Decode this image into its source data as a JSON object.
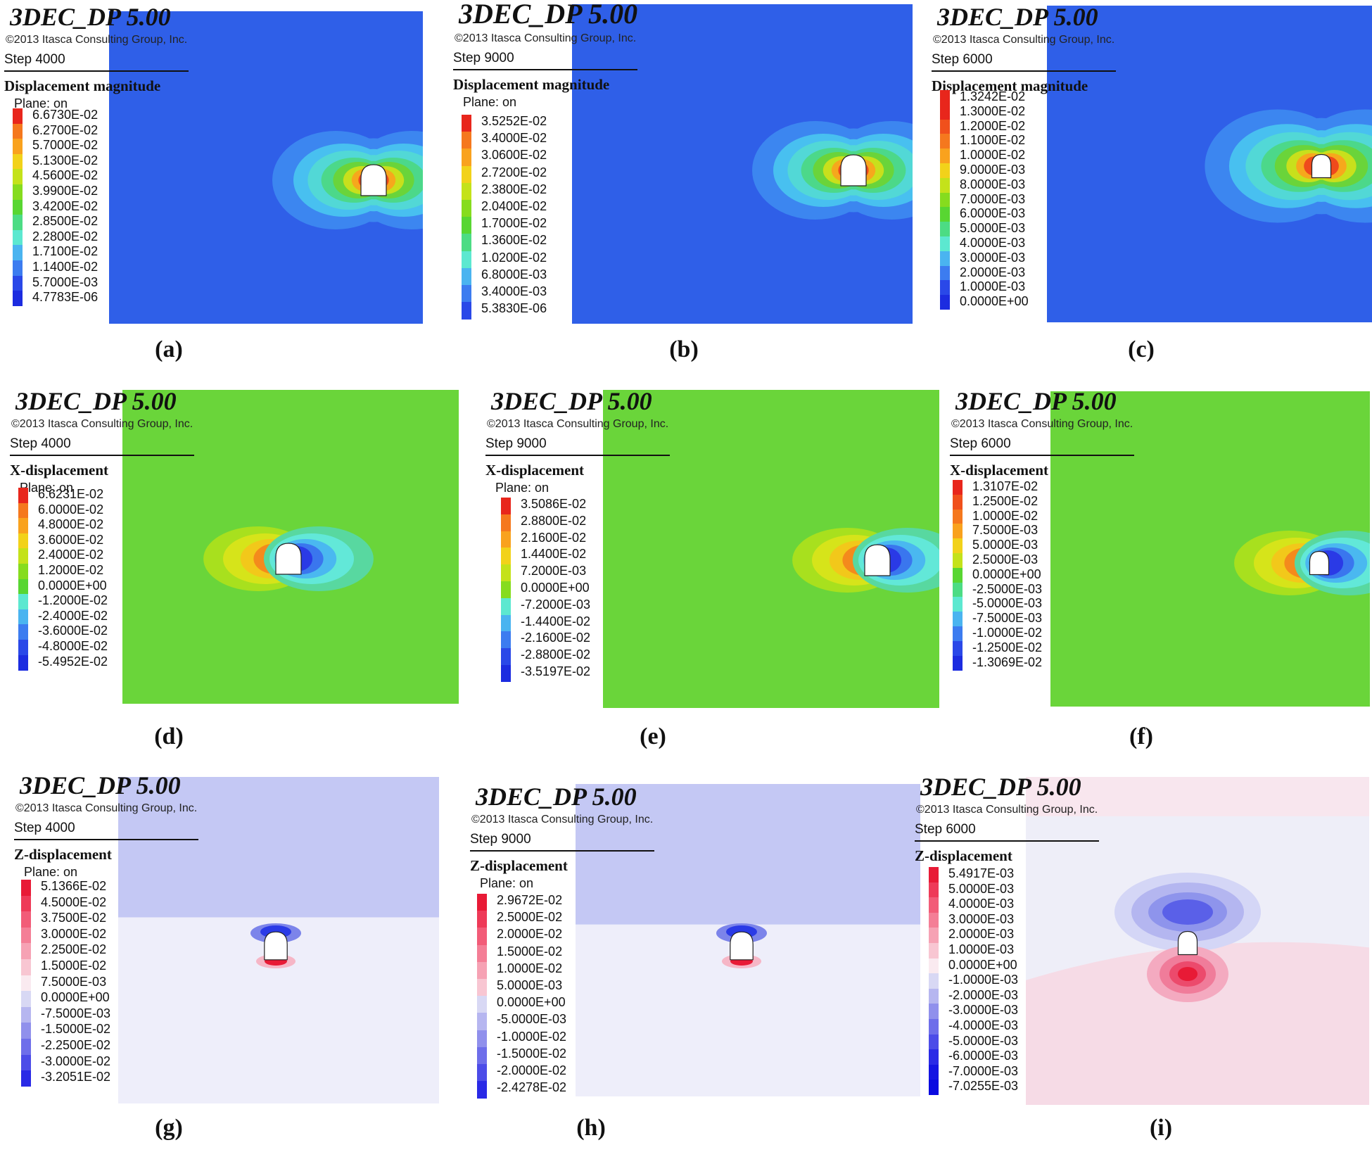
{
  "program": "3DEC_DP 5.00",
  "copyright": "©2013 Itasca Consulting Group, Inc.",
  "plane_label": "Plane: on",
  "panels": [
    {
      "caption": "(a)",
      "step": "Step 4000",
      "quantity": "Displacement magnitude",
      "legend": [
        "6.6730E-02",
        "6.2700E-02",
        "5.7000E-02",
        "5.1300E-02",
        "4.5600E-02",
        "3.9900E-02",
        "3.4200E-02",
        "2.8500E-02",
        "2.2800E-02",
        "1.7100E-02",
        "1.1400E-02",
        "5.7000E-03",
        "4.7783E-06"
      ]
    },
    {
      "caption": "(b)",
      "step": "Step 9000",
      "quantity": "Displacement magnitude",
      "legend": [
        "3.5252E-02",
        "3.4000E-02",
        "3.0600E-02",
        "2.7200E-02",
        "2.3800E-02",
        "2.0400E-02",
        "1.7000E-02",
        "1.3600E-02",
        "1.0200E-02",
        "6.8000E-03",
        "3.4000E-03",
        "5.3830E-06"
      ]
    },
    {
      "caption": "(c)",
      "step": "Step 6000",
      "quantity": "Displacement magnitude",
      "legend": [
        "1.3242E-02",
        "1.3000E-02",
        "1.2000E-02",
        "1.1000E-02",
        "1.0000E-02",
        "9.0000E-03",
        "8.0000E-03",
        "7.0000E-03",
        "6.0000E-03",
        "5.0000E-03",
        "4.0000E-03",
        "3.0000E-03",
        "2.0000E-03",
        "1.0000E-03",
        "0.0000E+00"
      ]
    },
    {
      "caption": "(d)",
      "step": "Step 4000",
      "quantity": "X-displacement",
      "legend": [
        "6.6231E-02",
        "6.0000E-02",
        "4.8000E-02",
        "3.6000E-02",
        "2.4000E-02",
        "1.2000E-02",
        "0.0000E+00",
        "-1.2000E-02",
        "-2.4000E-02",
        "-3.6000E-02",
        "-4.8000E-02",
        "-5.4952E-02"
      ]
    },
    {
      "caption": "(e)",
      "step": "Step 9000",
      "quantity": "X-displacement",
      "legend": [
        "3.5086E-02",
        "2.8800E-02",
        "2.1600E-02",
        "1.4400E-02",
        "7.2000E-03",
        "0.0000E+00",
        "-7.2000E-03",
        "-1.4400E-02",
        "-2.1600E-02",
        "-2.8800E-02",
        "-3.5197E-02"
      ]
    },
    {
      "caption": "(f)",
      "step": "Step 6000",
      "quantity": "X-displacement",
      "legend": [
        "1.3107E-02",
        "1.2500E-02",
        "1.0000E-02",
        "7.5000E-03",
        "5.0000E-03",
        "2.5000E-03",
        "0.0000E+00",
        "-2.5000E-03",
        "-5.0000E-03",
        "-7.5000E-03",
        "-1.0000E-02",
        "-1.2500E-02",
        "-1.3069E-02"
      ]
    },
    {
      "caption": "(g)",
      "step": "Step 4000",
      "quantity": "Z-displacement",
      "legend": [
        "5.1366E-02",
        "4.5000E-02",
        "3.7500E-02",
        "3.0000E-02",
        "2.2500E-02",
        "1.5000E-02",
        "7.5000E-03",
        "0.0000E+00",
        "-7.5000E-03",
        "-1.5000E-02",
        "-2.2500E-02",
        "-3.0000E-02",
        "-3.2051E-02"
      ]
    },
    {
      "caption": "(h)",
      "step": "Step 9000",
      "quantity": "Z-displacement",
      "legend": [
        "2.9672E-02",
        "2.5000E-02",
        "2.0000E-02",
        "1.5000E-02",
        "1.0000E-02",
        "5.0000E-03",
        "0.0000E+00",
        "-5.0000E-03",
        "-1.0000E-02",
        "-1.5000E-02",
        "-2.0000E-02",
        "-2.4278E-02"
      ]
    },
    {
      "caption": "(i)",
      "step": "Step 6000",
      "quantity": "Z-displacement",
      "legend": [
        "5.4917E-03",
        "5.0000E-03",
        "4.0000E-03",
        "3.0000E-03",
        "2.0000E-03",
        "1.0000E-03",
        "0.0000E+00",
        "-1.0000E-03",
        "-2.0000E-03",
        "-3.0000E-03",
        "-4.0000E-03",
        "-5.0000E-03",
        "-6.0000E-03",
        "-7.0000E-03",
        "-7.0255E-03"
      ]
    }
  ],
  "palettes": {
    "rainbow": [
      "#e8261c",
      "#f0501c",
      "#f5781e",
      "#f9a21e",
      "#f2d21a",
      "#c4e21a",
      "#86dc1e",
      "#58d632",
      "#4cdc84",
      "#5ce8d0",
      "#4ab4f0",
      "#3c7cf0",
      "#2a48e8",
      "#1c2ce0"
    ],
    "zdisp": [
      "#e81a36",
      "#ee3a58",
      "#f25c78",
      "#f47e96",
      "#f6a2b4",
      "#f8c6d2",
      "#faeaf0",
      "#d8d8f4",
      "#b6b6f0",
      "#9090ec",
      "#6e6eea",
      "#4c4ce8",
      "#2a2ae6",
      "#1414e2",
      "#0a0ae0"
    ],
    "magnitude_field": "#2f5fe8",
    "x_field": "#6ad53a",
    "z_upper": "#c4c8f4",
    "z_lower": "#eeeefa",
    "z_upper_i": "#f8e6ee",
    "z_mid_i": "#eeeef8",
    "z_lower_i": "#f6dbe6"
  }
}
